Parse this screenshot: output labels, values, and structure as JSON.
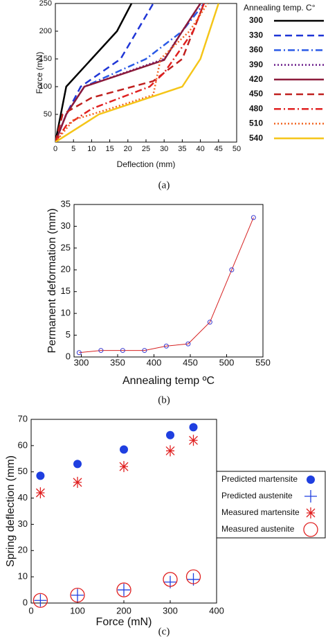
{
  "chart_data": [
    {
      "type": "line",
      "xlabel": "Deflection (mm)",
      "ylabel": "Force (mN)",
      "caption": "(a)",
      "legend_title": "Annealing temp. C°",
      "xlim": [
        0,
        50
      ],
      "xticks": [
        0,
        5,
        10,
        15,
        20,
        25,
        30,
        35,
        40,
        45,
        50
      ],
      "ylim": [
        0,
        250
      ],
      "yticks": [
        50,
        100,
        150,
        200,
        250
      ],
      "series": [
        {
          "name": "300",
          "color": "#000000",
          "dash": "solid",
          "x": [
            0,
            3,
            17,
            21
          ],
          "values": [
            0,
            100,
            200,
            250
          ]
        },
        {
          "name": "330",
          "color": "#1f35d6",
          "dash": "dash",
          "x": [
            0,
            3,
            7,
            18,
            27
          ],
          "values": [
            0,
            50,
            100,
            150,
            250
          ]
        },
        {
          "name": "360",
          "color": "#2a5ae6",
          "dash": "dashdot",
          "x": [
            0,
            3,
            8,
            25,
            35,
            41
          ],
          "values": [
            0,
            50,
            100,
            150,
            200,
            250
          ]
        },
        {
          "name": "390",
          "color": "#6a1b8a",
          "dash": "dot",
          "x": [
            0,
            3,
            8,
            30,
            35,
            40
          ],
          "values": [
            0,
            50,
            100,
            150,
            200,
            250
          ]
        },
        {
          "name": "420",
          "color": "#8b1a3a",
          "dash": "solid",
          "x": [
            0,
            3,
            8,
            30,
            35,
            40
          ],
          "values": [
            0,
            50,
            100,
            148,
            200,
            250
          ]
        },
        {
          "name": "450",
          "color": "#c0201f",
          "dash": "dash",
          "x": [
            0,
            2,
            10,
            27,
            35,
            41
          ],
          "values": [
            0,
            50,
            80,
            110,
            150,
            250
          ]
        },
        {
          "name": "480",
          "color": "#e02020",
          "dash": "dashdot",
          "x": [
            0,
            3,
            10,
            26,
            30,
            38,
            41
          ],
          "values": [
            0,
            30,
            60,
            100,
            125,
            200,
            250
          ]
        },
        {
          "name": "510",
          "color": "#f26522",
          "dash": "dot",
          "x": [
            0,
            5,
            15,
            27,
            29,
            37,
            42
          ],
          "values": [
            0,
            40,
            60,
            85,
            150,
            200,
            250
          ]
        },
        {
          "name": "540",
          "color": "#f5c518",
          "dash": "solid",
          "x": [
            0,
            12,
            35,
            40,
            45
          ],
          "values": [
            0,
            50,
            100,
            150,
            250
          ]
        }
      ]
    },
    {
      "type": "line-markers",
      "xlabel": "Annealing temp ºC",
      "ylabel": "Permanent deformation (mm)",
      "caption": "(b)",
      "xlim": [
        290,
        550
      ],
      "xticks": [
        300,
        350,
        400,
        450,
        500,
        550
      ],
      "ylim": [
        0,
        35
      ],
      "yticks": [
        0,
        5,
        10,
        15,
        20,
        25,
        30,
        35
      ],
      "color": "#d62020",
      "marker_color": "#3a3ad0",
      "x": [
        297,
        327,
        357,
        387,
        417,
        447,
        477,
        507,
        537
      ],
      "values": [
        1,
        1.5,
        1.5,
        1.5,
        2.5,
        3,
        8,
        20,
        32
      ]
    },
    {
      "type": "scatter",
      "xlabel": "Force (mN)",
      "ylabel": "Spring deflection  (mm)",
      "caption": "(c)",
      "xlim": [
        0,
        400
      ],
      "xticks": [
        0,
        100,
        200,
        300,
        400
      ],
      "ylim": [
        0,
        70
      ],
      "yticks": [
        0,
        10,
        20,
        30,
        40,
        50,
        60,
        70
      ],
      "x": [
        20,
        100,
        200,
        300,
        350
      ],
      "series": [
        {
          "name": "Predicted martensite",
          "color": "#1f3fe0",
          "marker": "circle-filled",
          "values": [
            48.5,
            53,
            58.5,
            64,
            67
          ]
        },
        {
          "name": "Predicted austenite",
          "color": "#1f3fe0",
          "marker": "plus",
          "values": [
            1,
            3,
            5,
            8,
            9
          ]
        },
        {
          "name": "Measured martensite",
          "color": "#e02020",
          "marker": "asterisk",
          "values": [
            42,
            46,
            52,
            58,
            62
          ]
        },
        {
          "name": "Measured austenite",
          "color": "#e02020",
          "marker": "circle-open",
          "values": [
            1,
            3,
            5,
            9,
            10
          ]
        }
      ]
    }
  ]
}
